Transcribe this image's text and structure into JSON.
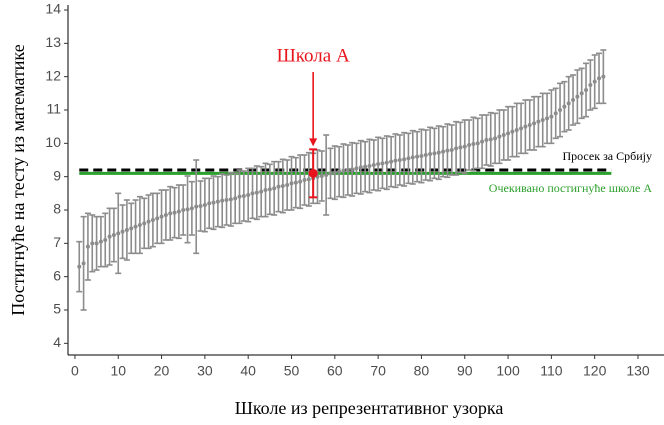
{
  "chart_data": {
    "type": "errorbar",
    "xlabel": "Школе из репрезентативног узорка",
    "ylabel": "Постигнуће на тесту из математике",
    "xlim": [
      -1.6,
      136
    ],
    "ylim": [
      3.65,
      14.15
    ],
    "xticks": [
      0,
      10,
      20,
      30,
      40,
      50,
      60,
      70,
      80,
      90,
      100,
      110,
      120,
      130
    ],
    "yticks": [
      4,
      5,
      6,
      7,
      8,
      9,
      10,
      11,
      12,
      13,
      14
    ],
    "series": [
      {
        "color": "#8c8c8c",
        "x": [
          1,
          2,
          3,
          4,
          5,
          6,
          7,
          8,
          9,
          10,
          11,
          12,
          13,
          14,
          15,
          16,
          17,
          18,
          19,
          20,
          21,
          22,
          23,
          24,
          25,
          26,
          27,
          28,
          29,
          30,
          31,
          32,
          33,
          34,
          35,
          36,
          37,
          38,
          39,
          40,
          41,
          42,
          43,
          44,
          45,
          46,
          47,
          48,
          49,
          50,
          51,
          52,
          53,
          54,
          55,
          56,
          57,
          58,
          59,
          60,
          61,
          62,
          63,
          64,
          65,
          66,
          67,
          68,
          69,
          70,
          71,
          72,
          73,
          74,
          75,
          76,
          77,
          78,
          79,
          80,
          81,
          82,
          83,
          84,
          85,
          86,
          87,
          88,
          89,
          90,
          91,
          92,
          93,
          94,
          95,
          96,
          97,
          98,
          99,
          100,
          101,
          102,
          103,
          104,
          105,
          106,
          107,
          108,
          109,
          110,
          111,
          112,
          113,
          114,
          115,
          116,
          117,
          118,
          119,
          120,
          121,
          122
        ],
        "values": [
          6.3,
          6.4,
          6.9,
          7.0,
          7.0,
          7.05,
          7.1,
          7.2,
          7.25,
          7.3,
          7.35,
          7.4,
          7.45,
          7.5,
          7.55,
          7.6,
          7.65,
          7.7,
          7.75,
          7.8,
          7.85,
          7.9,
          7.92,
          7.95,
          8.0,
          8.02,
          8.05,
          8.1,
          8.12,
          8.15,
          8.2,
          8.22,
          8.25,
          8.28,
          8.3,
          8.32,
          8.35,
          8.4,
          8.42,
          8.45,
          8.5,
          8.52,
          8.55,
          8.6,
          8.62,
          8.65,
          8.7,
          8.72,
          8.75,
          8.8,
          8.82,
          8.85,
          8.9,
          8.92,
          8.95,
          9.0,
          9.02,
          9.05,
          9.1,
          9.12,
          9.15,
          9.18,
          9.2,
          9.22,
          9.25,
          9.28,
          9.3,
          9.32,
          9.35,
          9.38,
          9.4,
          9.42,
          9.45,
          9.48,
          9.5,
          9.52,
          9.55,
          9.58,
          9.6,
          9.62,
          9.65,
          9.68,
          9.7,
          9.72,
          9.75,
          9.78,
          9.8,
          9.85,
          9.88,
          9.9,
          9.95,
          9.98,
          10.0,
          10.05,
          10.1,
          10.12,
          10.15,
          10.2,
          10.25,
          10.3,
          10.35,
          10.4,
          10.45,
          10.5,
          10.55,
          10.6,
          10.65,
          10.7,
          10.75,
          10.8,
          10.9,
          11.0,
          11.1,
          11.2,
          11.3,
          11.4,
          11.5,
          11.6,
          11.75,
          11.85,
          11.95,
          12.0
        ],
        "errors": [
          0.75,
          1.4,
          1.0,
          0.85,
          0.8,
          0.75,
          0.8,
          0.85,
          0.8,
          1.2,
          0.8,
          0.9,
          0.75,
          0.8,
          0.85,
          0.75,
          0.8,
          0.8,
          0.75,
          0.8,
          0.75,
          0.8,
          0.75,
          0.8,
          0.75,
          1.0,
          0.8,
          1.4,
          0.75,
          0.8,
          0.75,
          0.8,
          0.75,
          0.8,
          0.75,
          0.8,
          0.75,
          0.8,
          0.75,
          0.8,
          0.75,
          0.8,
          0.75,
          0.8,
          0.75,
          0.8,
          0.75,
          0.8,
          0.75,
          0.8,
          0.75,
          0.8,
          0.75,
          0.8,
          0.75,
          0.8,
          0.75,
          1.2,
          0.75,
          0.8,
          0.75,
          0.8,
          0.75,
          0.8,
          0.75,
          0.8,
          0.75,
          0.8,
          0.75,
          0.8,
          0.75,
          0.8,
          0.75,
          0.8,
          0.75,
          0.8,
          0.75,
          0.8,
          0.75,
          0.8,
          0.75,
          0.8,
          0.75,
          0.8,
          0.75,
          0.8,
          0.75,
          0.8,
          0.75,
          0.8,
          0.75,
          0.8,
          0.75,
          0.8,
          0.75,
          0.8,
          0.75,
          0.8,
          0.75,
          0.8,
          0.75,
          0.8,
          0.75,
          0.8,
          0.75,
          0.8,
          0.75,
          0.8,
          0.75,
          0.8,
          0.75,
          0.8,
          0.75,
          0.8,
          0.75,
          0.8,
          0.75,
          0.8,
          0.75,
          0.8,
          0.75,
          0.8
        ]
      },
      {
        "name": "Школа А",
        "color": "#e8141c",
        "x": [
          55
        ],
        "values": [
          9.1
        ],
        "errors": [
          0.72
        ]
      }
    ],
    "hlines": [
      {
        "label": "Просек за Србију",
        "value": 9.2,
        "color": "#000000",
        "dashed": true
      },
      {
        "label": "Очекивано постигнуће школе А",
        "value": 9.1,
        "color": "#2ca02c",
        "dashed": false
      }
    ]
  }
}
